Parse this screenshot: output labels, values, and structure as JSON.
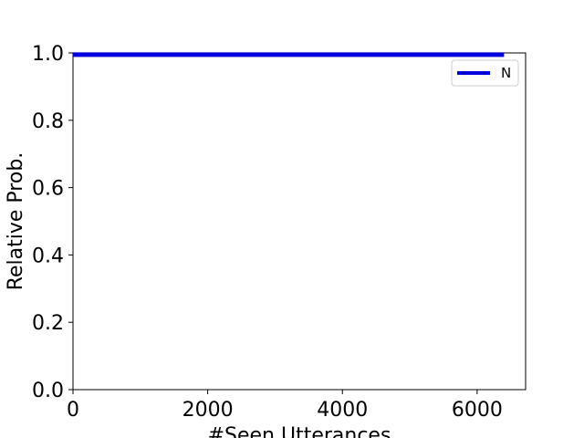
{
  "chart_data": {
    "type": "line",
    "xlabel": "#Seen Utterances",
    "ylabel": "Relative Prob.",
    "xlim": [
      0,
      6720
    ],
    "ylim": [
      0,
      1.0
    ],
    "x_ticks": [
      0,
      2000,
      4000,
      6000
    ],
    "y_ticks": [
      0.0,
      0.2,
      0.4,
      0.6,
      0.8,
      1.0
    ],
    "x_tick_labels": [
      "0",
      "2000",
      "4000",
      "6000"
    ],
    "y_tick_labels": [
      "0.0",
      "0.2",
      "0.4",
      "0.6",
      "0.8",
      "1.0"
    ],
    "grid": false,
    "legend_position": "upper right",
    "series": [
      {
        "name": "N",
        "color": "#0000dd",
        "x": [
          0,
          6400
        ],
        "y": [
          0.995,
          0.995
        ]
      }
    ]
  }
}
